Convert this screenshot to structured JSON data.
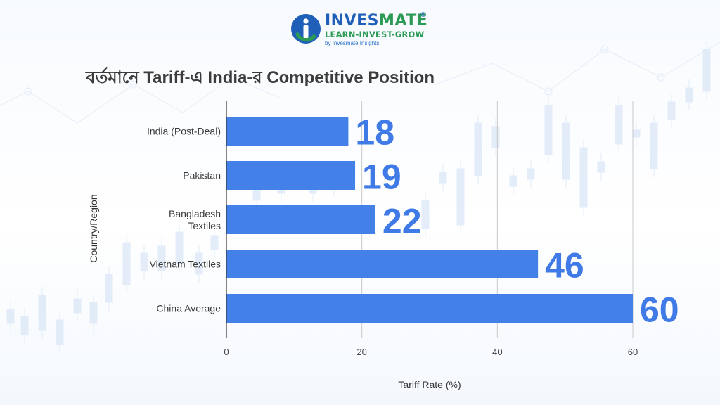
{
  "logo": {
    "name_primary": "INVES",
    "name_secondary": "MATE",
    "registered": "®",
    "tagline": "LEARN-INVEST-GROW",
    "subline": "by Invesmate Insights",
    "icon": "invesmate-logo-icon",
    "colors": {
      "blue": "#1f5fb8",
      "green": "#2a9a55"
    }
  },
  "chart_data": {
    "type": "bar",
    "orientation": "horizontal",
    "title": "বর্তমানে Tariff-এ India-র Competitive Position",
    "xlabel": "Tariff Rate (%)",
    "ylabel": "Country/Region",
    "categories": [
      [
        "India (Post-Deal)"
      ],
      [
        "Pakistan"
      ],
      [
        "Bangladesh",
        "Textiles"
      ],
      [
        "Vietnam Textiles"
      ],
      [
        "China Average"
      ]
    ],
    "values": [
      18,
      19,
      22,
      46,
      60
    ],
    "data_labels": [
      "18",
      "19",
      "22",
      "46",
      "60"
    ],
    "xlim": [
      0,
      60
    ],
    "xticks": [
      0,
      20,
      40,
      60
    ],
    "xtick_labels": [
      "0",
      "20",
      "40",
      "60"
    ],
    "grid": "vertical",
    "bar_color": "#4380e8",
    "label_color": "#3f7ae6"
  }
}
